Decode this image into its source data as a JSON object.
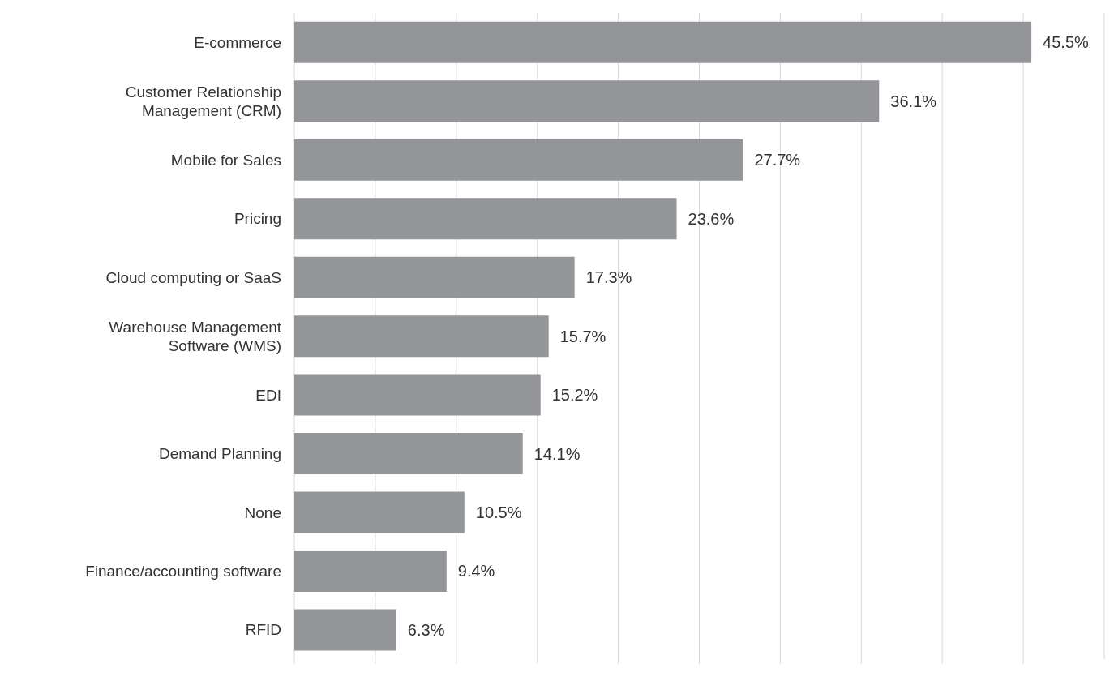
{
  "chart_data": {
    "type": "bar",
    "orientation": "horizontal",
    "categories": [
      "E-commerce",
      "Customer Relationship Management (CRM)",
      "Mobile for Sales",
      "Pricing",
      "Cloud computing or SaaS",
      "Warehouse Management Software (WMS)",
      "EDI",
      "Demand Planning",
      "None",
      "Finance/accounting software",
      "RFID"
    ],
    "values": [
      45.5,
      36.1,
      27.7,
      23.6,
      17.3,
      15.7,
      15.2,
      14.1,
      10.5,
      9.4,
      6.3
    ],
    "value_labels": [
      "45.5%",
      "36.1%",
      "27.7%",
      "23.6%",
      "17.3%",
      "15.7%",
      "15.2%",
      "14.1%",
      "10.5%",
      "9.4%",
      "6.3%"
    ],
    "color": "#939598",
    "xlim": [
      0,
      50
    ],
    "xticks": [
      {
        "value": 0,
        "label": null
      },
      {
        "value": 5,
        "label": null
      },
      {
        "value": 10,
        "label": null
      },
      {
        "value": 15,
        "label": null
      },
      {
        "value": 20,
        "label": null
      },
      {
        "value": 25,
        "label": null
      },
      {
        "value": 30,
        "label": null
      },
      {
        "value": 35,
        "label": null
      },
      {
        "value": 40,
        "label": null
      },
      {
        "value": 45,
        "label": null
      }
    ],
    "grid": "x",
    "legend": false
  }
}
